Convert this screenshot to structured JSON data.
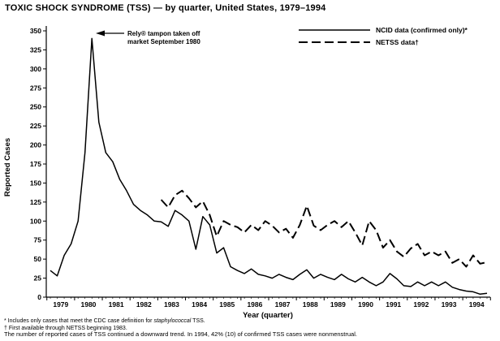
{
  "title": "TOXIC SHOCK SYNDROME (TSS) — by quarter, United States, 1979–1994",
  "annotation": {
    "line1": "Rely® tampon taken off",
    "line2": "market September 1980"
  },
  "footnotes": {
    "note1_pre": "* Includes only cases that meet the CDC case definition for ",
    "note1_italic": "staphylococcal",
    "note1_post": " TSS.",
    "note2": "† First available through NETSS beginning 1983."
  },
  "caption": "The number of reported cases of TSS continued a downward trend. In 1994, 42% (10) of confirmed TSS cases were nonmenstrual.",
  "chart_data": {
    "type": "line",
    "title": "TOXIC SHOCK SYNDROME (TSS) — by quarter, United States, 1979–1994",
    "xlabel": "Year (quarter)",
    "ylabel": "Reported Cases",
    "ylim": [
      0,
      350
    ],
    "ytick_step": 25,
    "grid": false,
    "legend_position": "top-right",
    "years": [
      "1979",
      "1980",
      "1981",
      "1982",
      "1983",
      "1984",
      "1985",
      "1986",
      "1987",
      "1988",
      "1989",
      "1990",
      "1991",
      "1992",
      "1993",
      "1994"
    ],
    "quarters_per_year": 4,
    "ink_color": "#000000",
    "series": [
      {
        "name": "NCID data (confirmed only)*",
        "style": "solid",
        "color": "#000000",
        "values": [
          35,
          28,
          55,
          70,
          100,
          190,
          340,
          230,
          190,
          178,
          155,
          140,
          122,
          114,
          108,
          100,
          99,
          93,
          114,
          108,
          100,
          63,
          106,
          95,
          58,
          65,
          40,
          35,
          31,
          37,
          30,
          28,
          25,
          30,
          26,
          23,
          30,
          36,
          25,
          30,
          26,
          23,
          30,
          24,
          20,
          26,
          20,
          15,
          20,
          31,
          24,
          15,
          14,
          20,
          15,
          20,
          15,
          20,
          13,
          10,
          8,
          7,
          4,
          5
        ]
      },
      {
        "name": "NETSS data†",
        "style": "dashed",
        "color": "#000000",
        "values": [
          null,
          null,
          null,
          null,
          null,
          null,
          null,
          null,
          null,
          null,
          null,
          null,
          null,
          null,
          null,
          null,
          128,
          118,
          134,
          140,
          130,
          118,
          126,
          108,
          80,
          100,
          95,
          92,
          85,
          95,
          88,
          100,
          94,
          85,
          90,
          78,
          95,
          120,
          94,
          88,
          95,
          100,
          92,
          100,
          85,
          68,
          100,
          88,
          65,
          75,
          60,
          53,
          64,
          70,
          55,
          60,
          55,
          60,
          45,
          50,
          40,
          55,
          44,
          46
        ]
      }
    ]
  }
}
